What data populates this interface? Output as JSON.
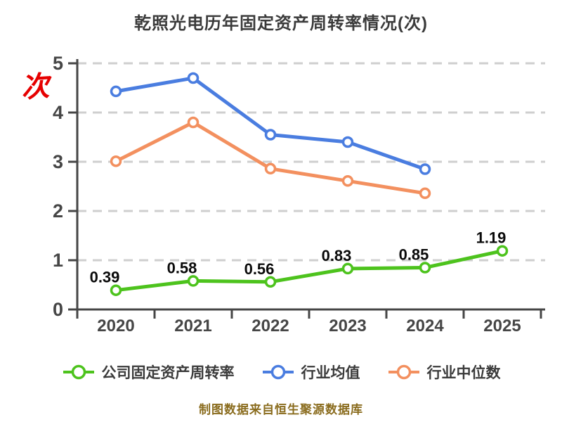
{
  "chart_data": {
    "type": "line",
    "title": "乾照光电历年固定资产周转率情况(次)",
    "y_unit": "次",
    "categories": [
      "2020",
      "2021",
      "2022",
      "2023",
      "2024",
      "2025"
    ],
    "series": [
      {
        "name": "公司固定资产周转率",
        "color": "#4dc31d",
        "values": [
          0.39,
          0.58,
          0.56,
          0.83,
          0.85,
          1.19
        ],
        "labels": [
          "0.39",
          "0.58",
          "0.56",
          "0.83",
          "0.85",
          "1.19"
        ],
        "show_labels": true
      },
      {
        "name": "行业均值",
        "color": "#4a7de0",
        "values": [
          4.43,
          4.7,
          3.55,
          3.4,
          2.85,
          null
        ],
        "show_labels": false
      },
      {
        "name": "行业中位数",
        "color": "#f3905f",
        "values": [
          3.01,
          3.8,
          2.86,
          2.61,
          2.36,
          null
        ],
        "show_labels": false
      }
    ],
    "ylim": [
      0,
      5
    ],
    "y_ticks": [
      "0",
      "1",
      "2",
      "3",
      "4",
      "5"
    ],
    "grid": "horizontal-dashed",
    "legend_position": "bottom",
    "marker_style": "white-filled-circle",
    "colors": {
      "axis": "#464646",
      "grid": "#cfcfcf",
      "tick_label": "#464646",
      "data_label": "#0a0a0a",
      "title": "#3b3b3b",
      "y_unit": "#e60000"
    }
  },
  "footer": {
    "caption": "制图数据来自恒生聚源数据库",
    "caption_color": "#8a6c1e"
  }
}
